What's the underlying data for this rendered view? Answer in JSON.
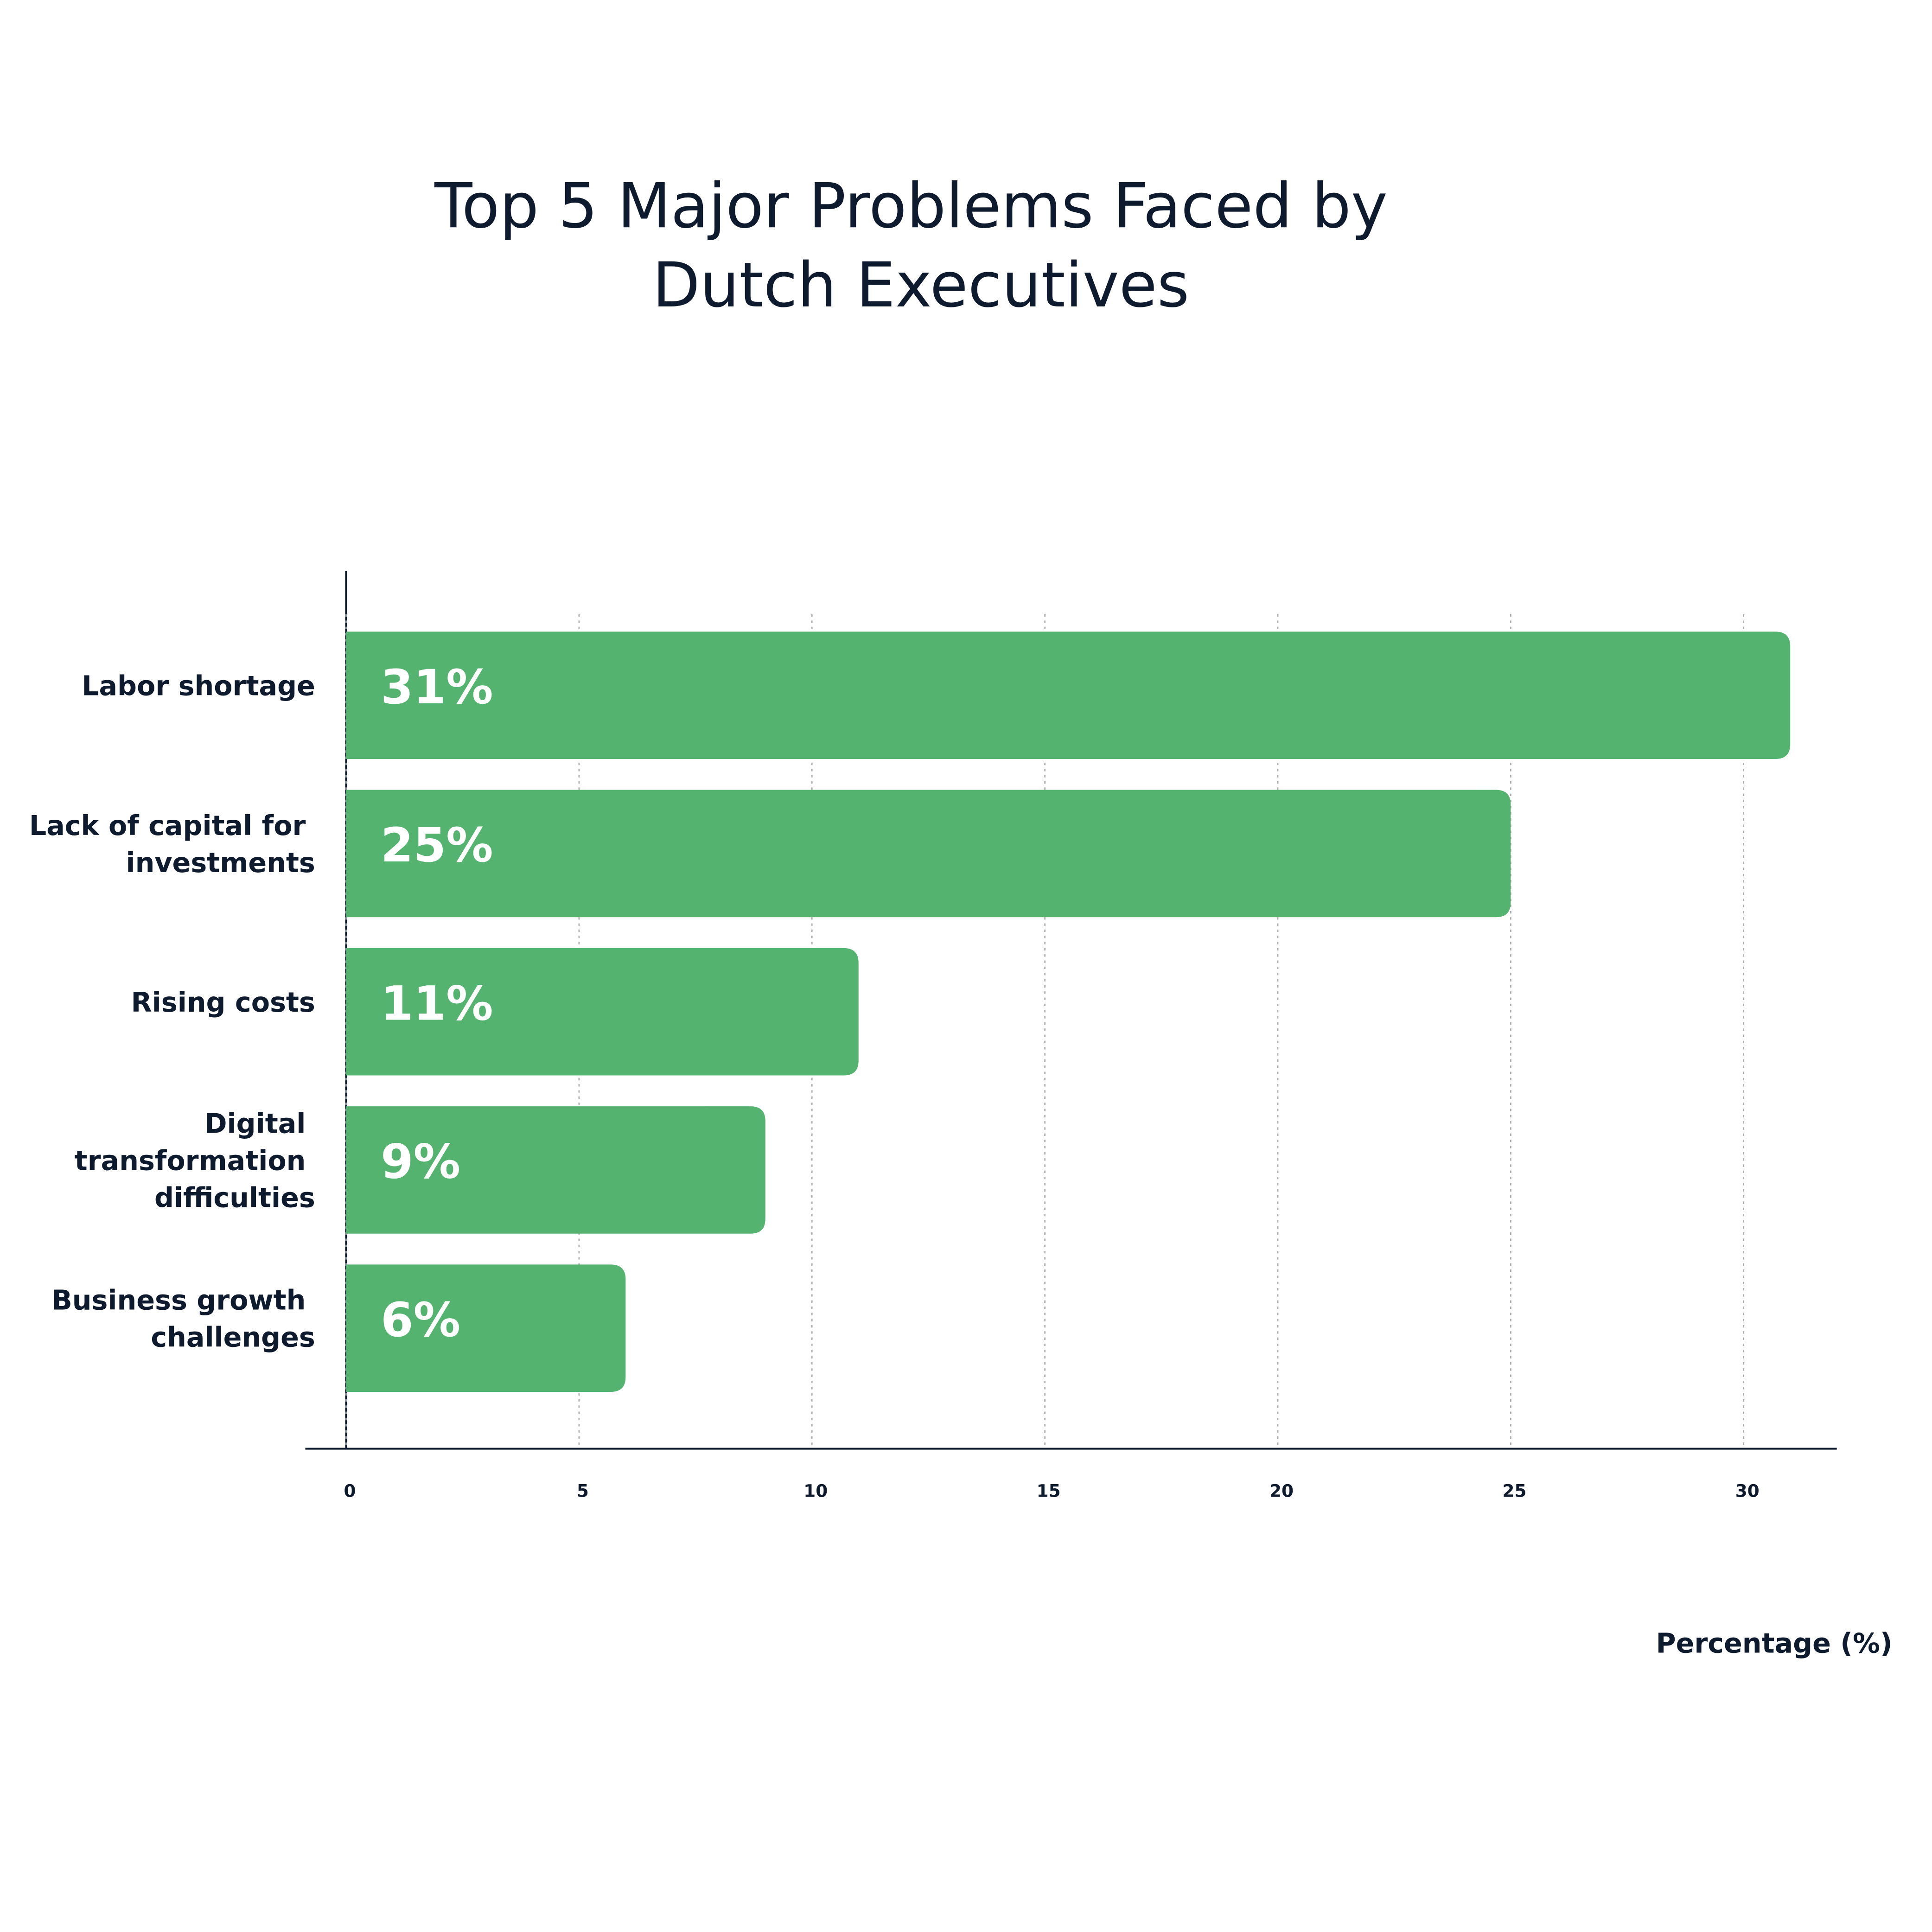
{
  "chart_data": {
    "type": "bar",
    "orientation": "horizontal",
    "title": "Top 5 Major Problems Faced by Dutch Executives",
    "x_label": "Percentage (%)",
    "categories": [
      "Labor shortage",
      "Lack of capital for investments",
      "Rising costs",
      "Digital transformation difficulties",
      "Business growth challenges"
    ],
    "values": [
      31,
      25,
      11,
      9,
      6
    ],
    "value_labels": [
      "31%",
      "25%",
      "11%",
      "9%",
      "6%"
    ],
    "color": "#54b36e",
    "xlim": [
      0,
      32
    ],
    "xticks": [
      0,
      5,
      10,
      15,
      20,
      25,
      30
    ],
    "grid": true
  }
}
